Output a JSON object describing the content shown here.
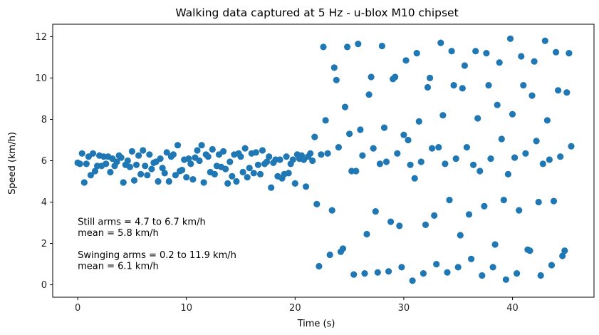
{
  "chart_data": {
    "type": "scatter",
    "title": "Walking data captured at 5 Hz - u-blox M10 chipset",
    "xlabel": "Time (s)",
    "ylabel": "Speed (km/h)",
    "xlim": [
      -2.3,
      47.5
    ],
    "ylim": [
      -0.6,
      12.6
    ],
    "xticks": [
      0,
      10,
      20,
      30,
      40
    ],
    "yticks": [
      0,
      2,
      4,
      6,
      8,
      10,
      12
    ],
    "grid": false,
    "point_color": "#1f77b4",
    "annotations": [
      {
        "lines": [
          "Still arms = 4.7 to 6.7 km/h",
          "mean = 5.8 km/h"
        ],
        "x": 0.0,
        "y": 2.9
      },
      {
        "lines": [
          "Swinging arms = 0.2 to 11.9 km/h",
          "mean = 6.1 km/h"
        ],
        "x": 0.0,
        "y": 1.3
      }
    ],
    "series": [
      {
        "points": [
          [
            0.0,
            5.9
          ],
          [
            0.2,
            5.85
          ],
          [
            0.4,
            6.35
          ],
          [
            0.6,
            4.95
          ],
          [
            0.8,
            5.85
          ],
          [
            1.0,
            6.2
          ],
          [
            1.2,
            5.3
          ],
          [
            1.4,
            6.35
          ],
          [
            1.6,
            5.5
          ],
          [
            1.8,
            5.75
          ],
          [
            2.0,
            6.25
          ],
          [
            2.2,
            5.75
          ],
          [
            2.4,
            6.2
          ],
          [
            2.6,
            5.85
          ],
          [
            2.8,
            6.2
          ],
          [
            3.0,
            5.45
          ],
          [
            3.2,
            6.1
          ],
          [
            3.4,
            5.75
          ],
          [
            3.6,
            5.95
          ],
          [
            3.8,
            6.25
          ],
          [
            4.0,
            6.15
          ],
          [
            4.2,
            4.95
          ],
          [
            4.4,
            5.8
          ],
          [
            4.6,
            6.0
          ],
          [
            4.8,
            5.7
          ],
          [
            5.0,
            6.45
          ],
          [
            5.2,
            5.05
          ],
          [
            5.4,
            5.8
          ],
          [
            5.6,
            6.25
          ],
          [
            5.8,
            5.35
          ],
          [
            6.0,
            6.5
          ],
          [
            6.2,
            5.75
          ],
          [
            6.4,
            5.3
          ],
          [
            6.6,
            6.3
          ],
          [
            6.8,
            5.6
          ],
          [
            7.0,
            5.9
          ],
          [
            7.2,
            5.95
          ],
          [
            7.4,
            5.0
          ],
          [
            7.6,
            6.1
          ],
          [
            7.8,
            5.65
          ],
          [
            8.0,
            5.4
          ],
          [
            8.2,
            6.4
          ],
          [
            8.4,
            5.0
          ],
          [
            8.6,
            6.2
          ],
          [
            8.8,
            6.3
          ],
          [
            9.0,
            5.3
          ],
          [
            9.2,
            6.75
          ],
          [
            9.4,
            5.5
          ],
          [
            9.6,
            5.55
          ],
          [
            9.8,
            6.05
          ],
          [
            10.0,
            5.2
          ],
          [
            10.2,
            6.1
          ],
          [
            10.4,
            5.85
          ],
          [
            10.6,
            5.1
          ],
          [
            10.8,
            6.15
          ],
          [
            11.0,
            6.5
          ],
          [
            11.2,
            6.0
          ],
          [
            11.4,
            6.75
          ],
          [
            11.6,
            4.95
          ],
          [
            11.8,
            6.3
          ],
          [
            12.0,
            6.2
          ],
          [
            12.2,
            5.45
          ],
          [
            12.4,
            6.55
          ],
          [
            12.6,
            5.35
          ],
          [
            12.8,
            5.75
          ],
          [
            13.0,
            6.3
          ],
          [
            13.2,
            5.7
          ],
          [
            13.4,
            6.45
          ],
          [
            13.6,
            5.6
          ],
          [
            13.8,
            4.9
          ],
          [
            14.0,
            5.95
          ],
          [
            14.2,
            5.25
          ],
          [
            14.4,
            6.3
          ],
          [
            14.6,
            5.0
          ],
          [
            14.8,
            6.35
          ],
          [
            15.0,
            6.2
          ],
          [
            15.2,
            5.45
          ],
          [
            15.4,
            6.6
          ],
          [
            15.6,
            5.2
          ],
          [
            15.8,
            5.65
          ],
          [
            16.0,
            6.35
          ],
          [
            16.2,
            5.4
          ],
          [
            16.4,
            6.4
          ],
          [
            16.6,
            5.8
          ],
          [
            16.8,
            5.35
          ],
          [
            17.0,
            6.5
          ],
          [
            17.2,
            5.85
          ],
          [
            17.4,
            5.95
          ],
          [
            17.6,
            6.2
          ],
          [
            17.8,
            4.7
          ],
          [
            18.0,
            5.9
          ],
          [
            18.2,
            6.05
          ],
          [
            18.4,
            5.25
          ],
          [
            18.6,
            6.05
          ],
          [
            18.8,
            5.15
          ],
          [
            19.0,
            5.35
          ],
          [
            19.2,
            6.2
          ],
          [
            19.4,
            5.4
          ],
          [
            19.6,
            5.85
          ],
          [
            19.8,
            6.05
          ],
          [
            20.0,
            4.9
          ],
          [
            20.2,
            6.3
          ],
          [
            20.4,
            6.1
          ],
          [
            20.6,
            6.25
          ],
          [
            20.8,
            6.05
          ],
          [
            21.0,
            4.75
          ],
          [
            21.2,
            6.2
          ],
          [
            21.4,
            6.35
          ],
          [
            21.6,
            6.0
          ],
          [
            21.8,
            7.15
          ],
          [
            22.0,
            3.9
          ],
          [
            22.2,
            0.9
          ]
        ]
      },
      {
        "points": [
          [
            22.4,
            6.3
          ],
          [
            22.6,
            11.5
          ],
          [
            22.8,
            7.95
          ],
          [
            23.0,
            6.35
          ],
          [
            23.2,
            1.45
          ],
          [
            23.4,
            3.6
          ],
          [
            23.6,
            10.5
          ],
          [
            23.8,
            9.9
          ],
          [
            24.0,
            6.65
          ],
          [
            24.2,
            1.6
          ],
          [
            24.4,
            1.75
          ],
          [
            24.6,
            8.6
          ],
          [
            24.8,
            11.5
          ],
          [
            25.0,
            7.3
          ],
          [
            25.2,
            5.5
          ],
          [
            25.4,
            0.5
          ],
          [
            25.6,
            5.5
          ],
          [
            25.8,
            11.65
          ],
          [
            26.0,
            7.5
          ],
          [
            26.2,
            6.25
          ],
          [
            26.4,
            0.55
          ],
          [
            26.6,
            2.45
          ],
          [
            26.8,
            9.2
          ],
          [
            27.0,
            10.05
          ],
          [
            27.2,
            6.6
          ],
          [
            27.4,
            3.55
          ],
          [
            27.6,
            0.6
          ],
          [
            27.8,
            5.85
          ],
          [
            28.0,
            11.55
          ],
          [
            28.2,
            7.6
          ],
          [
            28.4,
            5.95
          ],
          [
            28.6,
            0.65
          ],
          [
            28.8,
            3.05
          ],
          [
            29.0,
            9.95
          ],
          [
            29.2,
            10.05
          ],
          [
            29.4,
            6.35
          ],
          [
            29.6,
            2.85
          ],
          [
            29.8,
            0.85
          ],
          [
            30.0,
            7.25
          ],
          [
            30.2,
            10.85
          ],
          [
            30.4,
            7.0
          ],
          [
            30.6,
            5.8
          ],
          [
            30.8,
            0.2
          ],
          [
            31.0,
            5.15
          ],
          [
            31.2,
            11.2
          ],
          [
            31.4,
            7.9
          ],
          [
            31.6,
            5.95
          ],
          [
            31.8,
            0.55
          ],
          [
            32.0,
            2.9
          ],
          [
            32.2,
            9.55
          ],
          [
            32.4,
            10.0
          ],
          [
            32.6,
            6.6
          ],
          [
            32.8,
            3.35
          ],
          [
            33.0,
            1.0
          ],
          [
            33.2,
            6.65
          ],
          [
            33.4,
            11.7
          ],
          [
            33.6,
            8.2
          ],
          [
            33.8,
            5.85
          ],
          [
            34.0,
            0.6
          ],
          [
            34.2,
            4.1
          ],
          [
            34.4,
            11.3
          ],
          [
            34.6,
            9.65
          ],
          [
            34.8,
            6.1
          ],
          [
            35.0,
            0.85
          ],
          [
            35.2,
            2.4
          ],
          [
            35.4,
            9.5
          ],
          [
            35.6,
            10.6
          ],
          [
            35.8,
            6.65
          ],
          [
            36.0,
            3.4
          ],
          [
            36.2,
            1.25
          ],
          [
            36.4,
            5.8
          ],
          [
            36.6,
            11.3
          ],
          [
            36.8,
            8.05
          ],
          [
            37.0,
            5.5
          ],
          [
            37.2,
            0.45
          ],
          [
            37.4,
            3.8
          ],
          [
            37.6,
            11.2
          ],
          [
            37.8,
            9.65
          ],
          [
            38.0,
            6.1
          ],
          [
            38.2,
            0.85
          ],
          [
            38.4,
            1.95
          ],
          [
            38.6,
            8.7
          ],
          [
            38.8,
            10.75
          ],
          [
            39.0,
            7.05
          ],
          [
            39.2,
            4.1
          ],
          [
            39.4,
            0.25
          ],
          [
            39.6,
            5.35
          ],
          [
            39.8,
            11.9
          ],
          [
            40.0,
            8.25
          ],
          [
            40.2,
            6.15
          ],
          [
            40.4,
            0.55
          ],
          [
            40.6,
            3.6
          ],
          [
            40.8,
            11.05
          ],
          [
            41.0,
            9.65
          ],
          [
            41.2,
            6.35
          ],
          [
            41.4,
            1.7
          ],
          [
            41.6,
            1.65
          ],
          [
            41.8,
            9.15
          ],
          [
            42.0,
            10.8
          ],
          [
            42.2,
            6.95
          ],
          [
            42.4,
            4.0
          ],
          [
            42.6,
            0.45
          ],
          [
            42.8,
            5.85
          ],
          [
            43.0,
            11.8
          ],
          [
            43.2,
            7.95
          ],
          [
            43.4,
            6.05
          ],
          [
            43.6,
            0.95
          ],
          [
            43.8,
            4.05
          ],
          [
            44.0,
            11.25
          ],
          [
            44.2,
            9.4
          ],
          [
            44.4,
            6.2
          ],
          [
            44.6,
            1.4
          ],
          [
            44.8,
            1.65
          ],
          [
            45.0,
            9.3
          ],
          [
            45.2,
            11.2
          ],
          [
            45.4,
            6.7
          ]
        ]
      }
    ]
  }
}
